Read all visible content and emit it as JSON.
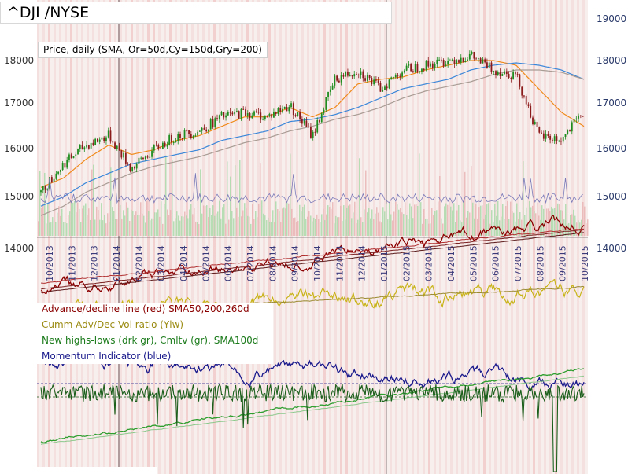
{
  "header": {
    "title": "^DJI /NYSE"
  },
  "panel_price": {
    "label": "Price, daily (SMA, Or=50d,Cy=150d,Gry=200)"
  },
  "panel_lower": {
    "labels": [
      "Advance/decline line (red) SMA50,200,260d",
      "Cumm Adv/Dec Vol ratio (Ylw)",
      "New highs-lows (drk gr), Cmltv (gr), SMA100d",
      "Momentum Indicator (blue)"
    ]
  },
  "colors": {
    "candle_up": "#1e8c1e",
    "candle_down": "#8b1a1a",
    "sma50": "#f08a1a",
    "sma150": "#3a86d8",
    "sma200": "#a89c94",
    "adline": "#8b0000",
    "advol": "#c8b418",
    "newhl": "#1a5e1a",
    "cmltv": "#2e9e2e",
    "momentum": "#1a1a8c",
    "vol_line": "#7a7ab8"
  },
  "chart_data": {
    "type": "line",
    "title": "^DJI /NYSE",
    "ylim": [
      13800,
      19200
    ],
    "y_ticks_left": [
      "18000",
      "17000",
      "16000",
      "15000",
      "14000"
    ],
    "y_ticks_right": [
      "19000",
      "18000",
      "17000",
      "16000",
      "15000",
      "14000"
    ],
    "x": [
      "10/2013",
      "11/2013",
      "12/2013",
      "01/2014",
      "02/2014",
      "03/2014",
      "04/2014",
      "05/2014",
      "06/2014",
      "07/2014",
      "08/2014",
      "09/2014",
      "10/2014",
      "11/2014",
      "12/2014",
      "01/2015",
      "02/2015",
      "03/2015",
      "04/2015",
      "05/2015",
      "06/2015",
      "07/2015",
      "08/2015",
      "09/2015",
      "10/2015"
    ],
    "series": [
      {
        "name": "Price",
        "values": [
          15200,
          15800,
          16200,
          16400,
          15700,
          16100,
          16400,
          16500,
          16800,
          16900,
          16800,
          17050,
          16400,
          17600,
          17800,
          17400,
          17800,
          17900,
          18000,
          18100,
          17800,
          17700,
          16400,
          16300,
          16900
        ]
      },
      {
        "name": "SMA50",
        "values": [
          15300,
          15500,
          15900,
          16200,
          16000,
          16100,
          16300,
          16400,
          16600,
          16800,
          16800,
          17000,
          16800,
          17000,
          17500,
          17600,
          17650,
          17800,
          17900,
          18000,
          18000,
          17900,
          17400,
          16900,
          16600
        ]
      },
      {
        "name": "SMA150",
        "values": [
          14900,
          15100,
          15400,
          15600,
          15800,
          15900,
          16000,
          16100,
          16300,
          16400,
          16500,
          16700,
          16750,
          16850,
          17000,
          17200,
          17400,
          17500,
          17600,
          17800,
          17900,
          17950,
          17900,
          17800,
          17600
        ]
      },
      {
        "name": "SMA200",
        "values": [
          14700,
          14900,
          15200,
          15400,
          15600,
          15750,
          15850,
          15950,
          16100,
          16250,
          16350,
          16500,
          16600,
          16750,
          16850,
          17000,
          17200,
          17350,
          17450,
          17550,
          17700,
          17800,
          17800,
          17750,
          17600
        ]
      }
    ]
  }
}
